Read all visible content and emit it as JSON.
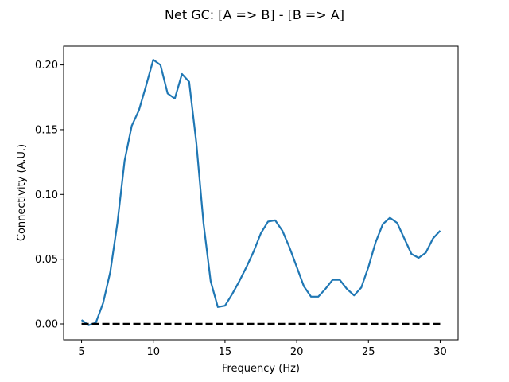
{
  "chart_data": {
    "type": "line",
    "title": "Net GC: [A => B] - [B => A]",
    "xlabel": "Frequency (Hz)",
    "ylabel": "Connectivity (A.U.)",
    "xlim": [
      3.75,
      31.25
    ],
    "ylim": [
      -0.0123,
      0.2145
    ],
    "xticks": [
      5,
      10,
      15,
      20,
      25,
      30
    ],
    "xtick_labels": [
      "5",
      "10",
      "15",
      "20",
      "25",
      "30"
    ],
    "yticks": [
      0.0,
      0.05,
      0.1,
      0.15,
      0.2
    ],
    "ytick_labels": [
      "0.00",
      "0.05",
      "0.10",
      "0.15",
      "0.20"
    ],
    "grid": false,
    "series": [
      {
        "color": "#1f77b4",
        "style": "solid",
        "x": [
          5.0,
          5.5,
          6.0,
          6.5,
          7.0,
          7.5,
          8.0,
          8.5,
          9.0,
          9.5,
          10.0,
          10.5,
          11.0,
          11.5,
          12.0,
          12.5,
          13.0,
          13.5,
          14.0,
          14.5,
          15.0,
          15.5,
          16.0,
          16.5,
          17.0,
          17.5,
          18.0,
          18.5,
          19.0,
          19.5,
          20.0,
          20.5,
          21.0,
          21.5,
          22.0,
          22.5,
          23.0,
          23.5,
          24.0,
          24.5,
          25.0,
          25.5,
          26.0,
          26.5,
          27.0,
          27.5,
          28.0,
          28.5,
          29.0,
          29.5,
          30.0
        ],
        "y": [
          0.003,
          -0.001,
          0.001,
          0.016,
          0.04,
          0.078,
          0.126,
          0.153,
          0.165,
          0.184,
          0.204,
          0.2,
          0.178,
          0.174,
          0.193,
          0.187,
          0.14,
          0.078,
          0.033,
          0.013,
          0.014,
          0.023,
          0.033,
          0.044,
          0.056,
          0.07,
          0.079,
          0.08,
          0.072,
          0.059,
          0.044,
          0.029,
          0.021,
          0.021,
          0.027,
          0.034,
          0.034,
          0.027,
          0.022,
          0.028,
          0.044,
          0.063,
          0.077,
          0.082,
          0.078,
          0.066,
          0.054,
          0.051,
          0.055,
          0.066,
          0.072
        ]
      },
      {
        "color": "#000000",
        "style": "dashed",
        "x": [
          5.0,
          30.0
        ],
        "y": [
          0.0,
          0.0
        ]
      }
    ]
  }
}
